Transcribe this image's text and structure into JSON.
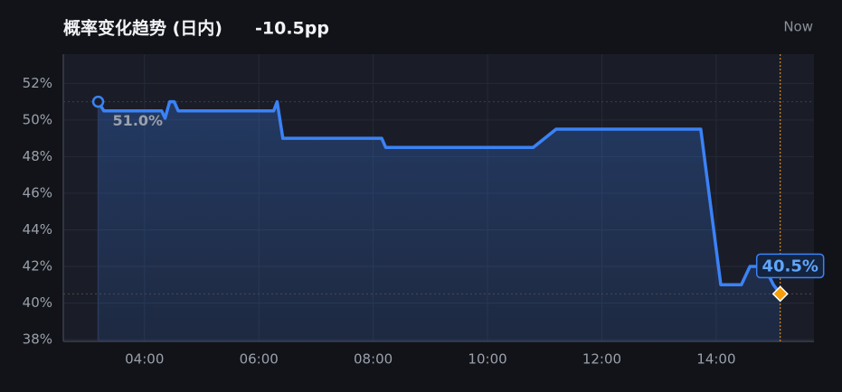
{
  "chart_data": {
    "type": "line",
    "title": "概率变化趋势 (日内)",
    "change": "-10.5pp",
    "now_label": "Now",
    "x": [
      3.19,
      3.29,
      4.3,
      4.36,
      4.44,
      4.52,
      4.59,
      6.26,
      6.32,
      6.42,
      8.15,
      8.22,
      10.8,
      11.2,
      13.73,
      14.08,
      14.44,
      14.59,
      14.84,
      15.0,
      15.12
    ],
    "values": [
      51.0,
      50.5,
      50.5,
      50.1,
      51.0,
      51.0,
      50.5,
      50.5,
      51.0,
      49.0,
      49.0,
      48.5,
      48.5,
      49.5,
      49.5,
      41.0,
      41.0,
      42.0,
      42.0,
      41.0,
      40.5
    ],
    "value_labels": [
      "51.0%",
      null,
      null,
      null,
      null,
      null,
      null,
      null,
      null,
      null,
      null,
      null,
      null,
      null,
      null,
      null,
      null,
      null,
      null,
      null,
      "40.5%"
    ],
    "color": "#3b82f6",
    "xlim": [
      2.58,
      15.71
    ],
    "xticks": [
      {
        "value": 4,
        "label": "04:00"
      },
      {
        "value": 6,
        "label": "06:00"
      },
      {
        "value": 8,
        "label": "08:00"
      },
      {
        "value": 10,
        "label": "10:00"
      },
      {
        "value": 12,
        "label": "12:00"
      },
      {
        "value": 14,
        "label": "14:00"
      }
    ],
    "ylim": [
      37.9,
      53.6
    ],
    "yticks": [
      {
        "value": 38,
        "label": "38%"
      },
      {
        "value": 40,
        "label": "40%"
      },
      {
        "value": 42,
        "label": "42%"
      },
      {
        "value": 44,
        "label": "44%"
      },
      {
        "value": 46,
        "label": "46%"
      },
      {
        "value": 48,
        "label": "48%"
      },
      {
        "value": 50,
        "label": "50%"
      },
      {
        "value": 52,
        "label": "52%"
      }
    ],
    "grid": true
  }
}
